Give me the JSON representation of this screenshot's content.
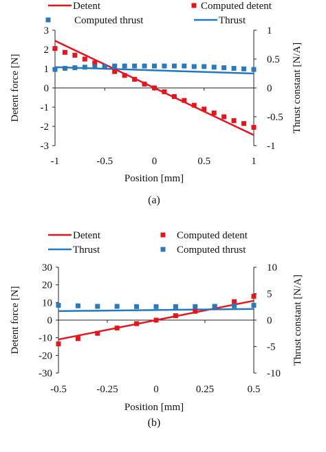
{
  "colors": {
    "detent": "#e8141b",
    "thrust": "#1f78c1",
    "computed_detent": "#e8141b",
    "computed_thrust": "#2a79bd",
    "axis": "#222222"
  },
  "chart_data": [
    {
      "type": "line",
      "caption": "(a)",
      "xlabel": "Position [mm]",
      "ylabel": "Detent force [N]",
      "y2label": "Thrust constant [N/A]",
      "xlim": [
        -1,
        1
      ],
      "ylim": [
        -3,
        3
      ],
      "y2lim": [
        -1,
        1
      ],
      "xticks": [
        -1,
        -0.5,
        0,
        0.5,
        1
      ],
      "xtick_labels": [
        "-1",
        "-0.5",
        "0",
        "0.5",
        "1"
      ],
      "yticks": [
        -3,
        -2,
        -1,
        0,
        1,
        2,
        3
      ],
      "ytick_labels": [
        "-3",
        "-2",
        "-1",
        "0",
        "1",
        "2",
        "3"
      ],
      "y2ticks": [
        -1,
        -0.5,
        0,
        0.5,
        1
      ],
      "y2tick_labels": [
        "-1",
        "-0.5",
        "0",
        "0.5",
        "1"
      ],
      "grid": false,
      "legend_position": "top",
      "legend": [
        {
          "label": "Detent",
          "kind": "line",
          "color": "#e8141b",
          "col": 0,
          "row": 0
        },
        {
          "label": "Computed detent",
          "kind": "marker",
          "color": "#e8141b",
          "col": 1,
          "row": 0
        },
        {
          "label": "Computed thrust",
          "kind": "marker",
          "color": "#2a79bd",
          "col": 0,
          "row": 1
        },
        {
          "label": "Thrust",
          "kind": "line",
          "color": "#1f78c1",
          "col": 1,
          "row": 1
        }
      ],
      "series": [
        {
          "name": "Detent",
          "kind": "line",
          "axis": "left",
          "color": "#e8141b",
          "x": [
            -1,
            1
          ],
          "y": [
            2.45,
            -2.45
          ]
        },
        {
          "name": "Thrust",
          "kind": "line",
          "axis": "right",
          "color": "#1f78c1",
          "x": [
            -1,
            1
          ],
          "y": [
            0.36,
            0.25
          ]
        },
        {
          "name": "Computed detent",
          "kind": "marker",
          "axis": "left",
          "color": "#e8141b",
          "x": [
            -1,
            -0.9,
            -0.8,
            -0.7,
            -0.6,
            -0.5,
            -0.4,
            -0.3,
            -0.2,
            -0.1,
            0,
            0.1,
            0.2,
            0.3,
            0.4,
            0.5,
            0.6,
            0.7,
            0.8,
            0.9,
            1
          ],
          "y": [
            2.05,
            1.85,
            1.7,
            1.5,
            1.3,
            1.1,
            0.85,
            0.65,
            0.45,
            0.2,
            0,
            -0.2,
            -0.45,
            -0.65,
            -0.9,
            -1.1,
            -1.3,
            -1.5,
            -1.7,
            -1.85,
            -2.05
          ]
        },
        {
          "name": "Computed thrust",
          "kind": "marker",
          "axis": "right",
          "color": "#2a79bd",
          "x": [
            -1,
            -0.9,
            -0.8,
            -0.7,
            -0.6,
            -0.5,
            -0.4,
            -0.3,
            -0.2,
            -0.1,
            0,
            0.1,
            0.2,
            0.3,
            0.4,
            0.5,
            0.6,
            0.7,
            0.8,
            0.9,
            1
          ],
          "y": [
            0.32,
            0.34,
            0.35,
            0.36,
            0.37,
            0.37,
            0.38,
            0.38,
            0.38,
            0.38,
            0.38,
            0.38,
            0.38,
            0.38,
            0.37,
            0.37,
            0.36,
            0.35,
            0.34,
            0.33,
            0.32
          ]
        }
      ]
    },
    {
      "type": "line",
      "caption": "(b)",
      "xlabel": "Position [mm]",
      "ylabel": "Detent force [N]",
      "y2label": "Thrust constant [N/A]",
      "xlim": [
        -0.5,
        0.5
      ],
      "ylim": [
        -30,
        30
      ],
      "y2lim": [
        -10,
        10
      ],
      "xticks": [
        -0.5,
        -0.25,
        0,
        0.25,
        0.5
      ],
      "xtick_labels": [
        "-0.5",
        "-0.25",
        "0",
        "0.25",
        "0.5"
      ],
      "yticks": [
        -30,
        -20,
        -10,
        0,
        10,
        20,
        30
      ],
      "ytick_labels": [
        "-30",
        "-20",
        "-10",
        "0",
        "10",
        "20",
        "30"
      ],
      "y2ticks": [
        -10,
        -5,
        0,
        5,
        10
      ],
      "y2tick_labels": [
        "-10",
        "-5",
        "0",
        "5",
        "10"
      ],
      "grid": false,
      "legend_position": "top",
      "legend": [
        {
          "label": "Detent",
          "kind": "line",
          "color": "#e8141b",
          "col": 0,
          "row": 0
        },
        {
          "label": "Computed detent",
          "kind": "marker",
          "color": "#e8141b",
          "col": 1,
          "row": 0
        },
        {
          "label": "Thrust",
          "kind": "line",
          "color": "#1f78c1",
          "col": 0,
          "row": 1
        },
        {
          "label": "Computed thrust",
          "kind": "marker",
          "color": "#2a79bd",
          "col": 1,
          "row": 1
        }
      ],
      "series": [
        {
          "name": "Detent",
          "kind": "line",
          "axis": "left",
          "color": "#e8141b",
          "x": [
            -0.5,
            0.5
          ],
          "y": [
            -11,
            11
          ]
        },
        {
          "name": "Thrust",
          "kind": "line",
          "axis": "right",
          "color": "#1f78c1",
          "x": [
            -0.5,
            0.5
          ],
          "y": [
            1.7,
            2.1
          ]
        },
        {
          "name": "Computed detent",
          "kind": "marker",
          "axis": "left",
          "color": "#e8141b",
          "x": [
            -0.5,
            -0.4,
            -0.3,
            -0.2,
            -0.1,
            0,
            0.1,
            0.2,
            0.3,
            0.4,
            0.5
          ],
          "y": [
            -13.5,
            -10.5,
            -7.5,
            -4.5,
            -2,
            0,
            2.5,
            5,
            7.5,
            10.5,
            13.5
          ]
        },
        {
          "name": "Computed thrust",
          "kind": "marker",
          "axis": "right",
          "color": "#2a79bd",
          "x": [
            -0.5,
            -0.4,
            -0.3,
            -0.2,
            -0.1,
            0,
            0.1,
            0.2,
            0.3,
            0.4,
            0.5
          ],
          "y": [
            2.8,
            2.7,
            2.6,
            2.6,
            2.55,
            2.55,
            2.55,
            2.55,
            2.6,
            2.7,
            2.8
          ]
        }
      ]
    }
  ]
}
